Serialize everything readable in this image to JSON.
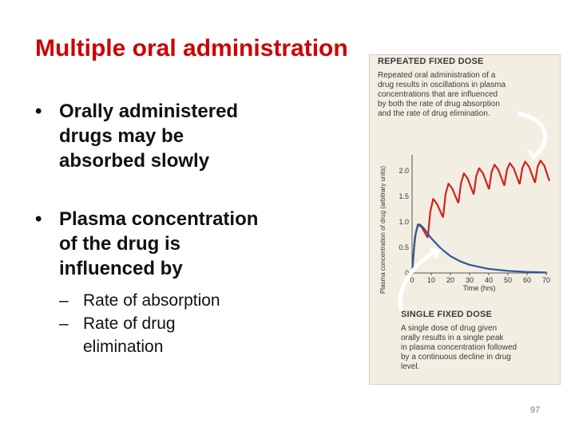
{
  "slide": {
    "title": "Multiple oral administration",
    "page_number": "97"
  },
  "bullets": [
    {
      "text": "Orally administered drugs may be absorbed slowly",
      "lines": [
        "Orally administered",
        "drugs may be",
        "absorbed slowly"
      ]
    },
    {
      "text": "Plasma concentration of the drug is influenced by",
      "lines": [
        "Plasma concentration",
        "of the drug is",
        "influenced by"
      ]
    }
  ],
  "sub_bullets": [
    {
      "lines": [
        "Rate of absorption"
      ]
    },
    {
      "lines": [
        "Rate of drug",
        "elimination"
      ]
    }
  ],
  "figure": {
    "repeated": {
      "title": "REPEATED FIXED DOSE",
      "lines": [
        "Repeated oral administration of a",
        "drug results in oscillations in plasma",
        "concentrations that are influenced",
        "by both the rate of drug absorption",
        "and the rate of drug elimination."
      ]
    },
    "single": {
      "title": "SINGLE FIXED DOSE",
      "lines": [
        "A single dose of drug given",
        "orally results in a single peak",
        "in plasma concentration followed",
        "by a continuous decline in drug",
        "level."
      ]
    },
    "colors": {
      "repeated": "#d42020",
      "single": "#2a5aa0",
      "arrow": "#ffffff"
    }
  },
  "chart_data": {
    "type": "line",
    "ylabel": "Plasma concentration of drug (arbitrary units)",
    "xlabel": "Time (hrs)",
    "xlim": [
      0,
      70
    ],
    "ylim": [
      0,
      2.0
    ],
    "x_ticks": [
      0,
      10,
      20,
      30,
      40,
      50,
      60,
      70
    ],
    "y_ticks": [
      0,
      0.5,
      1.0,
      1.5,
      2.0
    ],
    "y_tick_labels": [
      "0",
      "0.5",
      "1.0",
      "1.5",
      "2.0"
    ],
    "series": [
      {
        "label": "repeated",
        "x": [
          0,
          1.5,
          3,
          5,
          8,
          8.2,
          9.5,
          11,
          13,
          16,
          16.2,
          17.5,
          19,
          21,
          24,
          24.2,
          25.5,
          27,
          29,
          32,
          32.2,
          33.5,
          35,
          37,
          40,
          40.2,
          41.5,
          43,
          45,
          48,
          48.2,
          49.5,
          51,
          53,
          56,
          56.2,
          57.5,
          59,
          61,
          64,
          64.2,
          65.5,
          67,
          69,
          72
        ],
        "values": [
          0,
          0.7,
          0.95,
          0.9,
          0.7,
          0.7,
          1.2,
          1.45,
          1.35,
          1.1,
          1.1,
          1.55,
          1.75,
          1.65,
          1.38,
          1.38,
          1.75,
          1.95,
          1.85,
          1.55,
          1.55,
          1.9,
          2.05,
          1.95,
          1.65,
          1.65,
          1.98,
          2.12,
          2.02,
          1.72,
          1.72,
          2.02,
          2.15,
          2.05,
          1.75,
          1.75,
          2.05,
          2.18,
          2.08,
          1.78,
          1.78,
          2.08,
          2.2,
          2.1,
          1.8
        ]
      },
      {
        "label": "single",
        "x": [
          0,
          1,
          2,
          3,
          4,
          6,
          8,
          10,
          15,
          20,
          25,
          30,
          40,
          50,
          60,
          70
        ],
        "values": [
          0,
          0.5,
          0.8,
          0.92,
          0.95,
          0.88,
          0.78,
          0.68,
          0.48,
          0.33,
          0.23,
          0.16,
          0.08,
          0.04,
          0.02,
          0.01
        ]
      }
    ]
  }
}
